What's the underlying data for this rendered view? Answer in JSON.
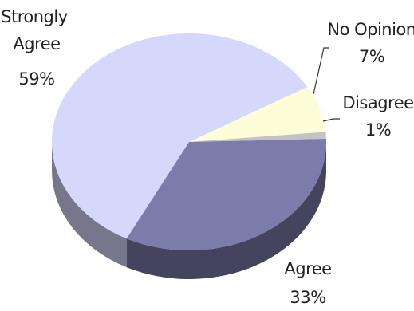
{
  "chart_data": {
    "type": "pie",
    "title": "",
    "three_d": true,
    "legend": "none",
    "slices": [
      {
        "label": "Strongly Agree",
        "value": 59,
        "value_text": "59%",
        "color": "#d6d8fb"
      },
      {
        "label": "No Opinion",
        "value": 7,
        "value_text": "7%",
        "color": "#fdfdd8"
      },
      {
        "label": "Disagree",
        "value": 1,
        "value_text": "1%",
        "color": "#c3c3c3"
      },
      {
        "label": "Agree",
        "value": 33,
        "value_text": "33%",
        "color": "#7c7cab"
      }
    ]
  }
}
